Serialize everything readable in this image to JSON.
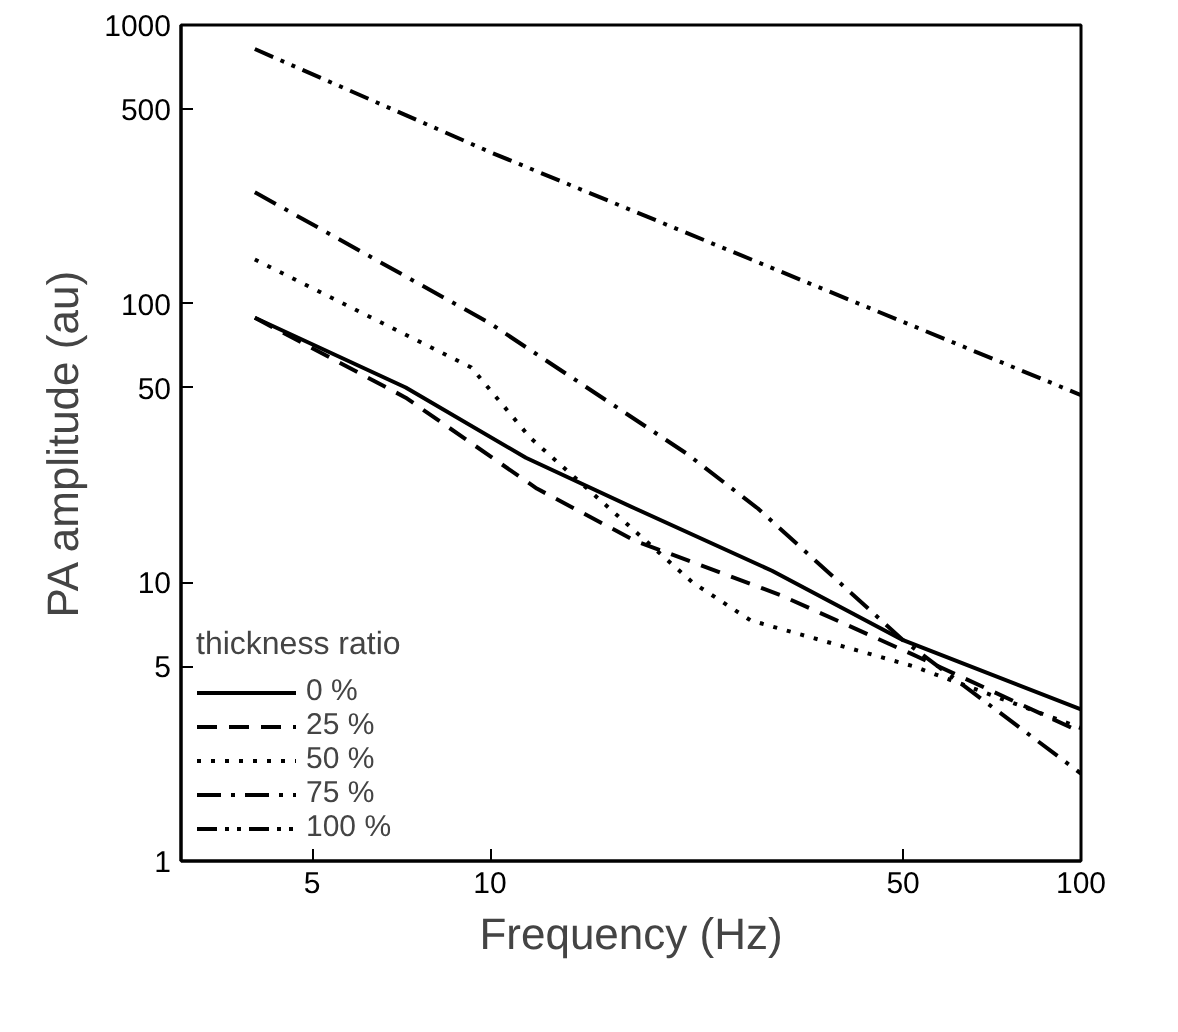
{
  "chart_data": {
    "type": "line",
    "xlabel": "Frequency (Hz)",
    "ylabel": "PA amplitude (au)",
    "legend_title": "thickness ratio",
    "log": "xy",
    "xlim": [
      3,
      100
    ],
    "ylim": [
      1,
      1000
    ],
    "xticks": [
      5,
      10,
      50,
      100
    ],
    "yticks": [
      1,
      5,
      10,
      50,
      100,
      500,
      1000
    ],
    "grid": false,
    "legend": "bottom left",
    "marker": "none",
    "series": [
      {
        "name": "0 %",
        "color": "#000000",
        "line_style": "solid",
        "x": [
          4,
          7.2,
          11.5,
          17.6,
          30,
          50,
          100
        ],
        "values": [
          89,
          50,
          28,
          18.4,
          11,
          6.2,
          3.5
        ]
      },
      {
        "name": "25 %",
        "color": "#000000",
        "line_style": "dashed",
        "x": [
          4,
          7.2,
          12,
          17.6,
          31,
          52,
          100
        ],
        "values": [
          89,
          46,
          21.7,
          14.1,
          9,
          5.5,
          2.9
        ]
      },
      {
        "name": "50 %",
        "color": "#000000",
        "line_style": "dotted",
        "x": [
          4,
          9.3,
          11.7,
          22,
          27.6,
          40.6,
          52,
          100
        ],
        "values": [
          144,
          59,
          33,
          10,
          7.3,
          5.8,
          5.0,
          3.0
        ]
      },
      {
        "name": "75 %",
        "color": "#000000",
        "line_style": "dashdot",
        "x": [
          4,
          10,
          21.5,
          28.4,
          50,
          100
        ],
        "values": [
          251,
          85,
          29,
          18.4,
          6.2,
          2.06
        ]
      },
      {
        "name": "100 %",
        "color": "#000000",
        "line_style": "dashdotdot",
        "x": [
          4,
          10,
          100
        ],
        "values": [
          820,
          350,
          47
        ]
      }
    ]
  }
}
